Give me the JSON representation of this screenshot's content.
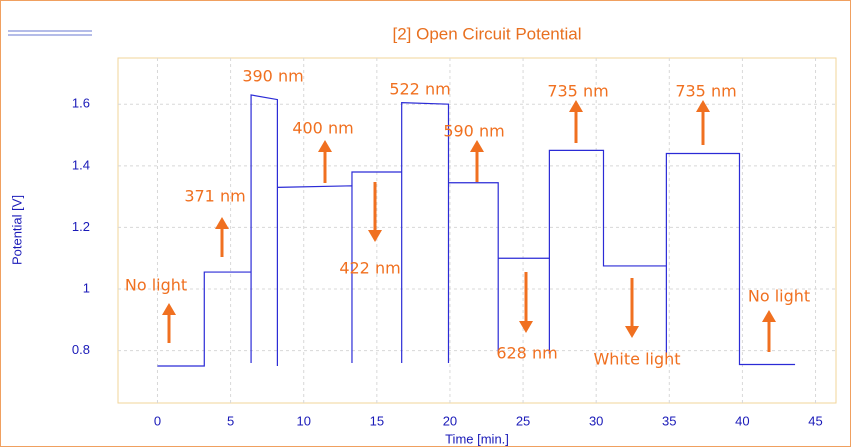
{
  "chart_data": {
    "type": "line",
    "title": "[2] Open Circuit Potential",
    "x_label": "Time [min.]",
    "y_label": "Potential [V]",
    "x": [
      0,
      3.2,
      3.2,
      6.4,
      6.4,
      6.4,
      8.2,
      8.2,
      8.2,
      13.3,
      13.3,
      13.3,
      16.7,
      16.7,
      16.7,
      19.9,
      19.9,
      19.9,
      23.3,
      23.3,
      23.3,
      26.8,
      26.8,
      26.8,
      30.5,
      30.5,
      34.8,
      34.8,
      34.8,
      39.8,
      39.8,
      43.6
    ],
    "series": [
      {
        "color": "#2b2bd6",
        "values": [
          0.75,
          0.75,
          1.055,
          1.055,
          0.76,
          1.63,
          1.615,
          0.75,
          1.33,
          1.335,
          0.76,
          1.38,
          1.38,
          0.76,
          1.605,
          1.6,
          0.76,
          1.345,
          1.345,
          0.79,
          1.1,
          1.1,
          0.79,
          1.45,
          1.45,
          1.075,
          1.075,
          0.78,
          1.44,
          1.44,
          0.755,
          0.755
        ]
      }
    ],
    "xlim": [
      -2.7,
      46.4
    ],
    "xticks": [
      0,
      5,
      10,
      15,
      20,
      25,
      30,
      35,
      40,
      45
    ],
    "ylim": [
      0.63,
      1.75
    ],
    "yticks": [
      0.8,
      1,
      1.2,
      1.4,
      1.6
    ],
    "grid": true,
    "annotations": [
      "No light",
      "371 nm",
      "390 nm",
      "400 nm",
      "422 nm",
      "522 nm",
      "590 nm",
      "628 nm",
      "735 nm",
      "White light",
      "735 nm",
      "No light"
    ]
  }
}
